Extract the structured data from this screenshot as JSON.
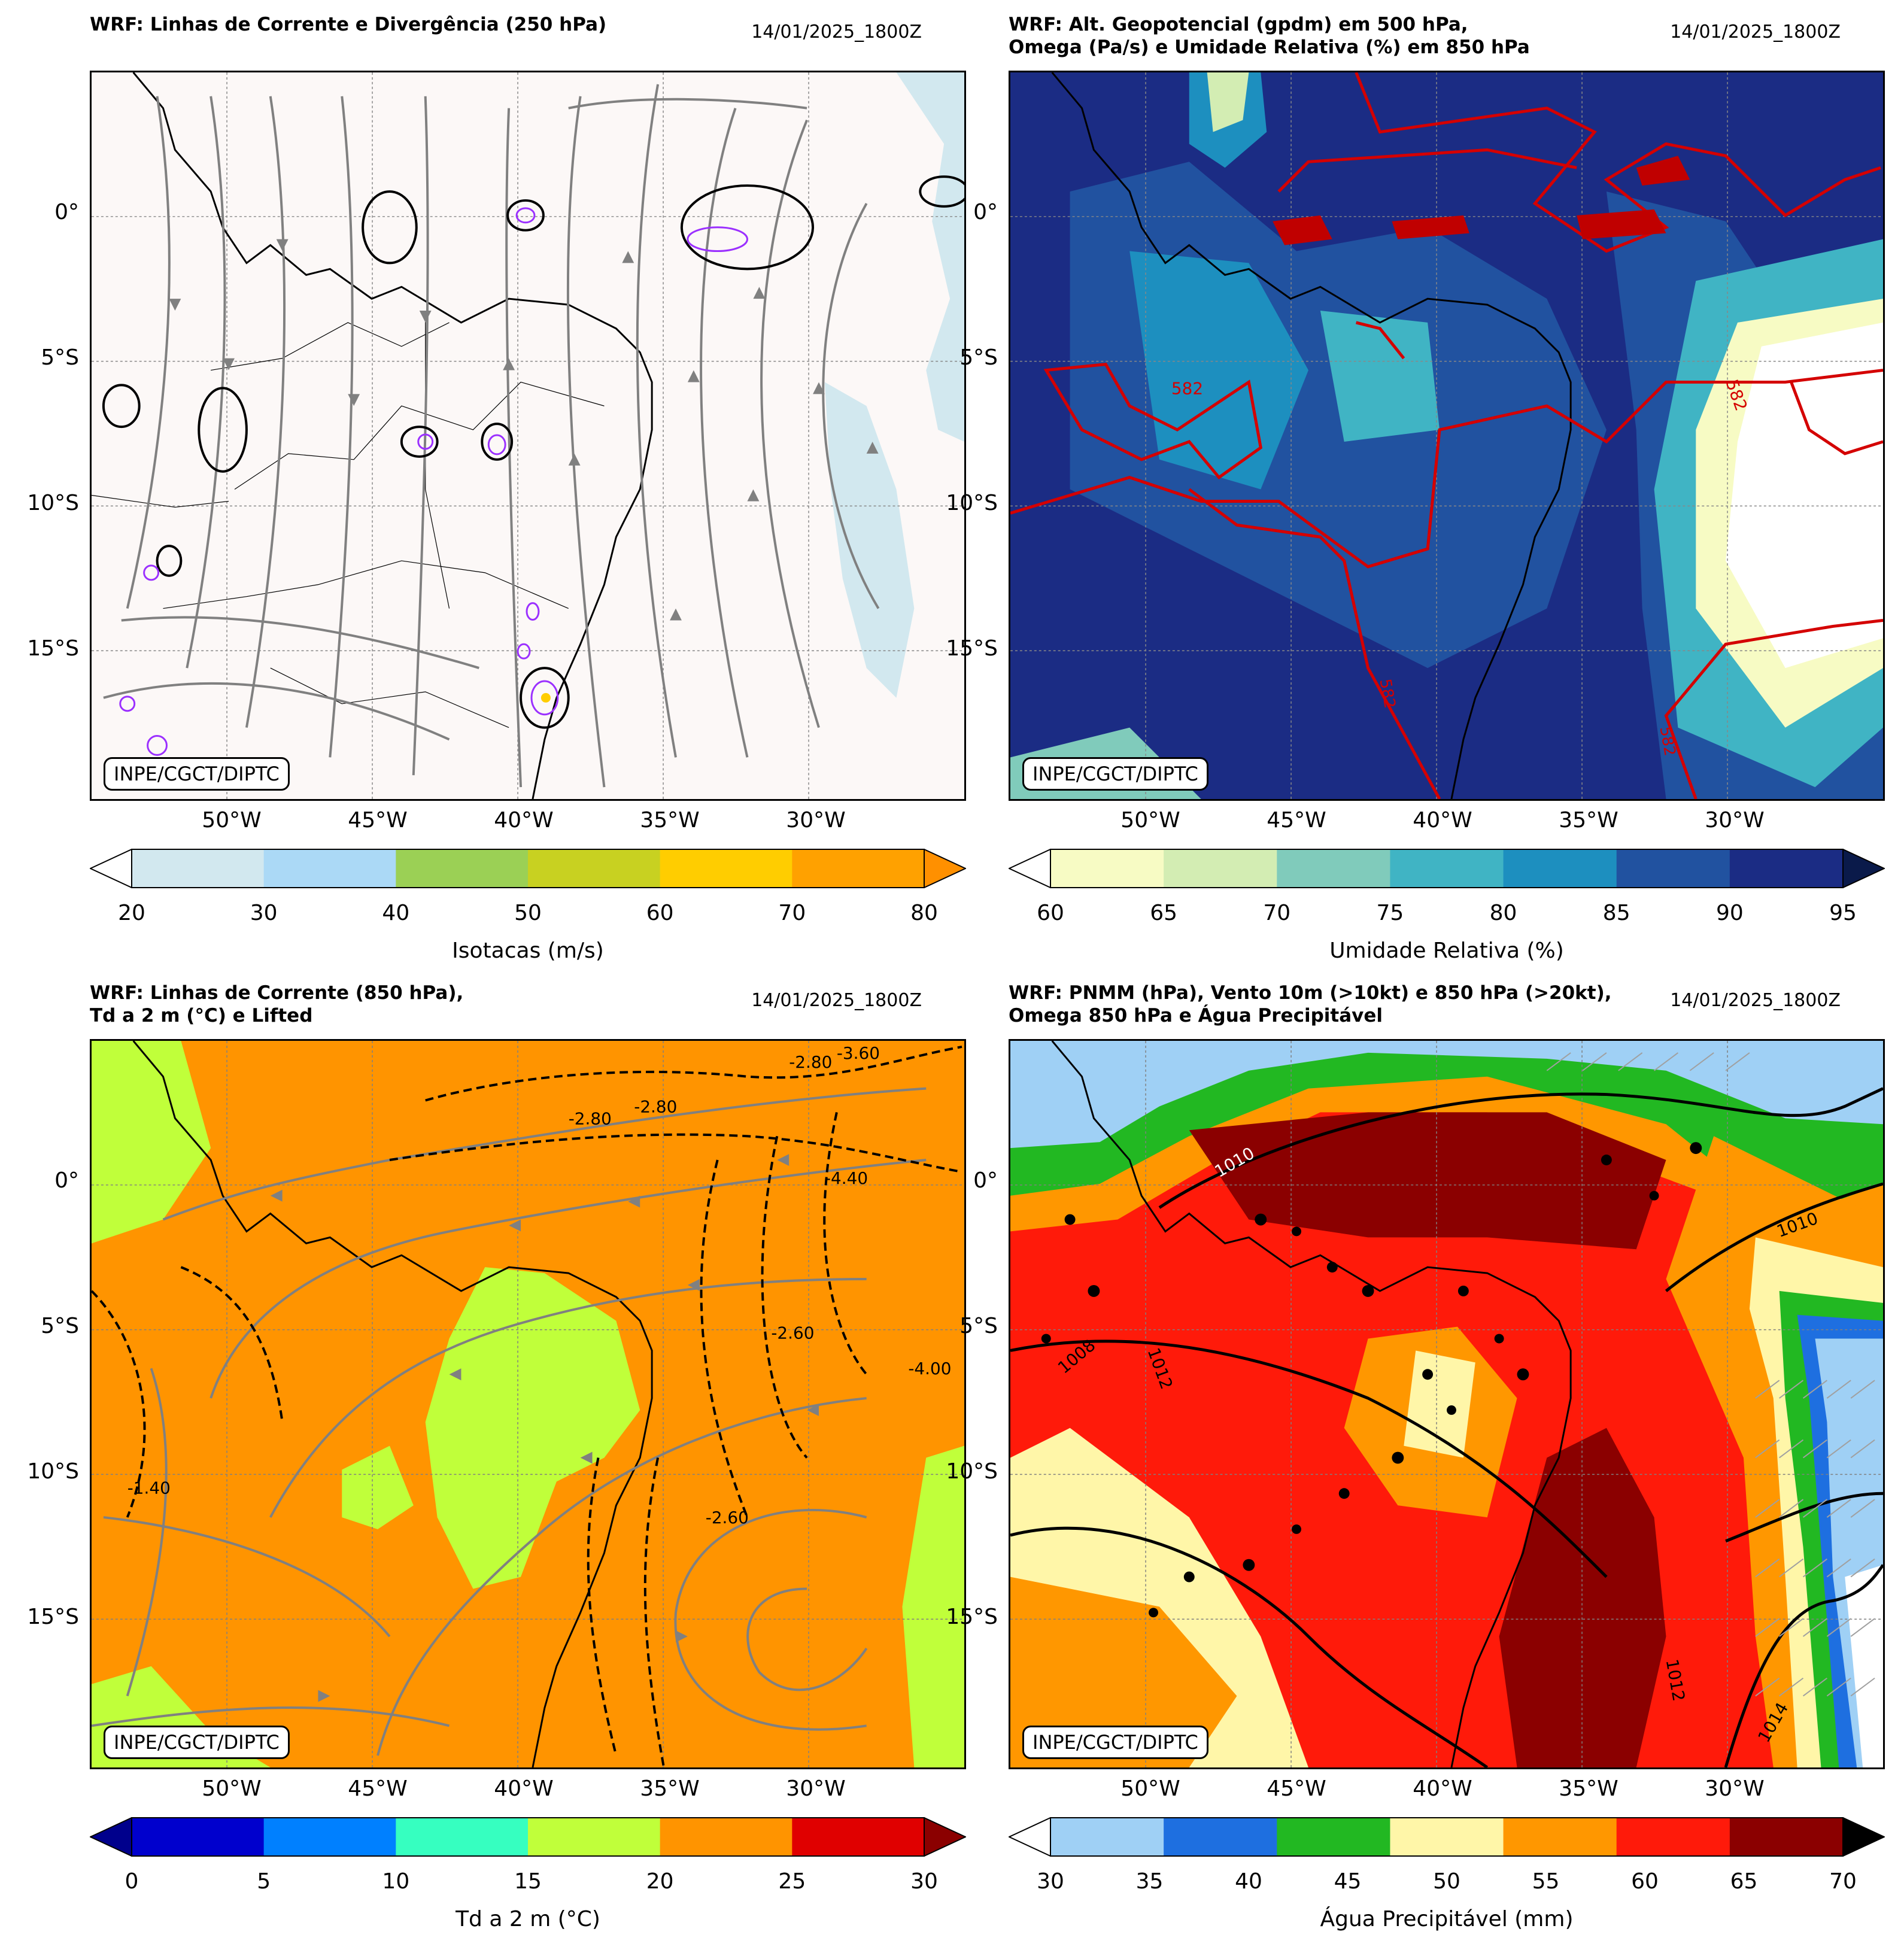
{
  "credit": "INPE/CGCT/DIPTC",
  "datetime": "14/01/2025_1800Z",
  "lat_labels": [
    "0°",
    "5°S",
    "10°S",
    "15°S"
  ],
  "lon_labels": [
    "50°W",
    "45°W",
    "40°W",
    "35°W",
    "30°W"
  ],
  "panels": [
    {
      "title_1": "WRF: Linhas de Corrente e Divergência (250 hPa)",
      "title_2": "",
      "colorbar": {
        "label": "Isotacas (m/s)",
        "ticks": [
          "20",
          "30",
          "40",
          "50",
          "60",
          "70",
          "80"
        ],
        "colors": [
          "#d2e8ef",
          "#abd9f6",
          "#9bd055",
          "#c8d121",
          "#ffcd00",
          "#ffa100"
        ],
        "under": "#ffffff",
        "over": "#ff9000"
      }
    },
    {
      "title_1": "WRF: Alt. Geopotencial (gpdm) em 500 hPa,",
      "title_2": "Omega (Pa/s) e Umidade Relativa (%) em 850 hPa",
      "contour_labels": [
        "582",
        "582",
        "582",
        "582"
      ],
      "colorbar": {
        "label": "Umidade Relativa (%)",
        "ticks": [
          "60",
          "65",
          "70",
          "75",
          "80",
          "85",
          "90",
          "95"
        ],
        "colors": [
          "#f7fbc4",
          "#d3edb3",
          "#80cbbb",
          "#40b4c4",
          "#1d8fbf",
          "#2152a0",
          "#1b2c84"
        ],
        "under": "#ffffff",
        "over": "#0a1a4a"
      }
    },
    {
      "title_1": "WRF: Linhas de Corrente (850 hPa),",
      "title_2": "Td a 2 m (°C) e Lifted",
      "contour_labels": [
        "-2.80",
        "-3.60",
        "-2.80",
        "-2.80",
        "-4.40",
        "-2.60",
        "-2.60",
        "-4.00",
        "-1.40"
      ],
      "colorbar": {
        "label": "Td a 2 m (°C)",
        "ticks": [
          "0",
          "5",
          "10",
          "15",
          "20",
          "25",
          "30"
        ],
        "colors": [
          "#0000cd",
          "#0080ff",
          "#36ffc0",
          "#c0ff3a",
          "#ff9400",
          "#e00000"
        ],
        "under": "#00008c",
        "over": "#8b0000"
      }
    },
    {
      "title_1": "WRF: PNMM (hPa), Vento 10m (>10kt) e 850 hPa (>20kt),",
      "title_2": "Omega 850 hPa e Água Precipitável",
      "contour_labels": [
        "1010",
        "1010",
        "1012",
        "1012",
        "1014",
        "1008"
      ],
      "colorbar": {
        "label": "Água Precipitável (mm)",
        "ticks": [
          "30",
          "35",
          "40",
          "45",
          "50",
          "55",
          "60",
          "65",
          "70"
        ],
        "colors": [
          "#9fd0f5",
          "#1e6fe0",
          "#22b822",
          "#fff6a8",
          "#ff9700",
          "#ff1a0a",
          "#8b0000"
        ],
        "under": "#ffffff",
        "over": "#000000"
      }
    }
  ]
}
